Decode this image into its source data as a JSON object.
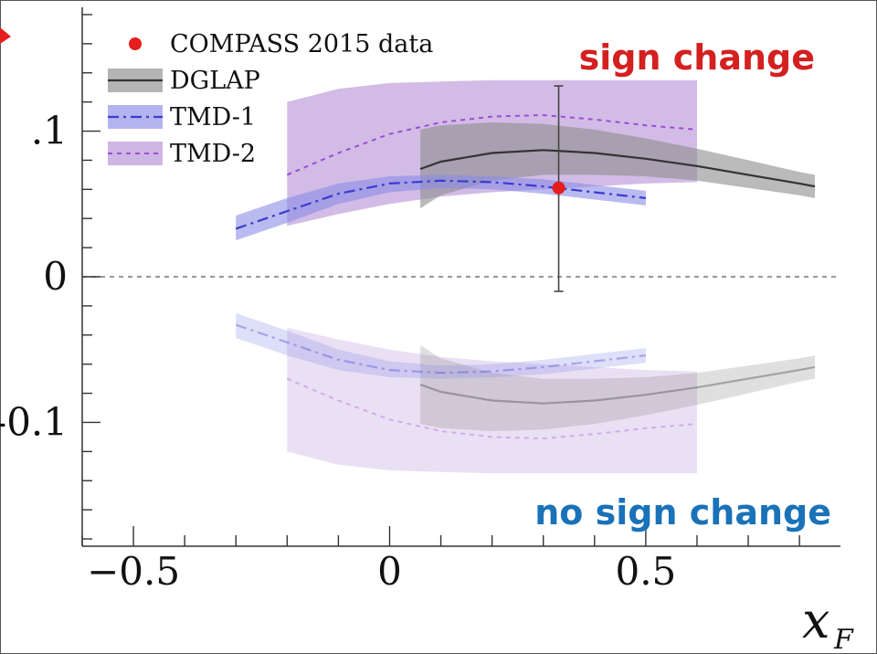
{
  "chart_data": {
    "type": "line",
    "xlabel": "x",
    "xlabel_sub": "F",
    "xlim": [
      -0.6,
      0.88
    ],
    "ylim": [
      -0.185,
      0.185
    ],
    "x_ticks": [
      -0.5,
      0,
      0.5
    ],
    "x_tick_labels": [
      "−0.5",
      "0",
      "0.5"
    ],
    "y_ticks": [
      0.1,
      0,
      -0.1
    ],
    "y_tick_labels": [
      ".1",
      "0",
      "-0.1"
    ],
    "zero_line": true,
    "legend_position": "top-left",
    "legend": [
      {
        "label": "COMPASS 2015 data",
        "key": "data"
      },
      {
        "label": "DGLAP",
        "key": "dglap"
      },
      {
        "label": "TMD-1",
        "key": "tmd1"
      },
      {
        "label": "TMD-2",
        "key": "tmd2"
      }
    ],
    "annotations": [
      {
        "text": "sign change",
        "color": "#d42020",
        "position": "top-right"
      },
      {
        "text": "no sign change",
        "color": "#1a72b8",
        "position": "bottom-right"
      }
    ],
    "colors": {
      "data": "#e51d1d",
      "dglap_band": "#8c8c8c",
      "dglap_line": "#333333",
      "tmd1_band": "#8a8ce6",
      "tmd1_line": "#3b3bd0",
      "tmd2_band": "#b48fd6",
      "tmd2_line": "#a04ad8"
    },
    "data_point": {
      "x": 0.33,
      "y": 0.061,
      "err_low": -0.01,
      "err_high": 0.131
    },
    "series": [
      {
        "name": "DGLAP",
        "key": "dglap",
        "region": "sign change",
        "x": [
          0.06,
          0.1,
          0.2,
          0.3,
          0.4,
          0.5,
          0.6,
          0.7,
          0.8,
          0.83
        ],
        "y": [
          0.074,
          0.079,
          0.085,
          0.087,
          0.085,
          0.081,
          0.076,
          0.07,
          0.064,
          0.062
        ],
        "lower": [
          0.047,
          0.056,
          0.066,
          0.07,
          0.07,
          0.069,
          0.066,
          0.061,
          0.056,
          0.054
        ],
        "upper": [
          0.101,
          0.104,
          0.106,
          0.105,
          0.101,
          0.095,
          0.088,
          0.08,
          0.072,
          0.07
        ]
      },
      {
        "name": "TMD-1",
        "key": "tmd1",
        "region": "sign change",
        "x": [
          -0.3,
          -0.2,
          -0.1,
          0.0,
          0.1,
          0.2,
          0.3,
          0.4,
          0.5
        ],
        "y": [
          0.033,
          0.045,
          0.057,
          0.064,
          0.066,
          0.065,
          0.062,
          0.058,
          0.054
        ],
        "lower": [
          0.025,
          0.037,
          0.05,
          0.058,
          0.061,
          0.06,
          0.057,
          0.053,
          0.049
        ],
        "upper": [
          0.042,
          0.054,
          0.064,
          0.069,
          0.07,
          0.069,
          0.067,
          0.063,
          0.059
        ]
      },
      {
        "name": "TMD-2",
        "key": "tmd2",
        "region": "sign change",
        "x": [
          -0.2,
          -0.1,
          0.0,
          0.1,
          0.2,
          0.3,
          0.4,
          0.5,
          0.6
        ],
        "y": [
          0.07,
          0.085,
          0.098,
          0.106,
          0.11,
          0.111,
          0.108,
          0.104,
          0.101
        ],
        "lower": [
          0.035,
          0.043,
          0.05,
          0.055,
          0.058,
          0.06,
          0.062,
          0.064,
          0.065
        ],
        "upper": [
          0.12,
          0.129,
          0.133,
          0.134,
          0.135,
          0.135,
          0.135,
          0.135,
          0.135
        ]
      },
      {
        "key": "dglap",
        "region": "no sign change",
        "faded": true,
        "x": [
          0.06,
          0.1,
          0.2,
          0.3,
          0.4,
          0.5,
          0.6,
          0.7,
          0.8,
          0.83
        ],
        "y": [
          -0.074,
          -0.079,
          -0.085,
          -0.087,
          -0.085,
          -0.081,
          -0.076,
          -0.07,
          -0.064,
          -0.062
        ],
        "lower": [
          -0.101,
          -0.104,
          -0.106,
          -0.105,
          -0.101,
          -0.095,
          -0.088,
          -0.08,
          -0.072,
          -0.07
        ],
        "upper": [
          -0.047,
          -0.056,
          -0.066,
          -0.07,
          -0.07,
          -0.069,
          -0.066,
          -0.061,
          -0.056,
          -0.054
        ]
      },
      {
        "key": "tmd1",
        "region": "no sign change",
        "faded": true,
        "x": [
          -0.3,
          -0.2,
          -0.1,
          0.0,
          0.1,
          0.2,
          0.3,
          0.4,
          0.5
        ],
        "y": [
          -0.033,
          -0.045,
          -0.057,
          -0.064,
          -0.066,
          -0.065,
          -0.062,
          -0.058,
          -0.054
        ],
        "lower": [
          -0.042,
          -0.054,
          -0.064,
          -0.069,
          -0.07,
          -0.069,
          -0.067,
          -0.063,
          -0.059
        ],
        "upper": [
          -0.025,
          -0.037,
          -0.05,
          -0.058,
          -0.061,
          -0.06,
          -0.057,
          -0.053,
          -0.049
        ]
      },
      {
        "key": "tmd2",
        "region": "no sign change",
        "faded": true,
        "x": [
          -0.2,
          -0.1,
          0.0,
          0.1,
          0.2,
          0.3,
          0.4,
          0.5,
          0.6
        ],
        "y": [
          -0.07,
          -0.085,
          -0.098,
          -0.106,
          -0.11,
          -0.111,
          -0.108,
          -0.104,
          -0.101
        ],
        "lower": [
          -0.12,
          -0.129,
          -0.133,
          -0.134,
          -0.135,
          -0.135,
          -0.135,
          -0.135,
          -0.135
        ],
        "upper": [
          -0.035,
          -0.043,
          -0.05,
          -0.055,
          -0.058,
          -0.06,
          -0.062,
          -0.064,
          -0.065
        ]
      }
    ]
  }
}
